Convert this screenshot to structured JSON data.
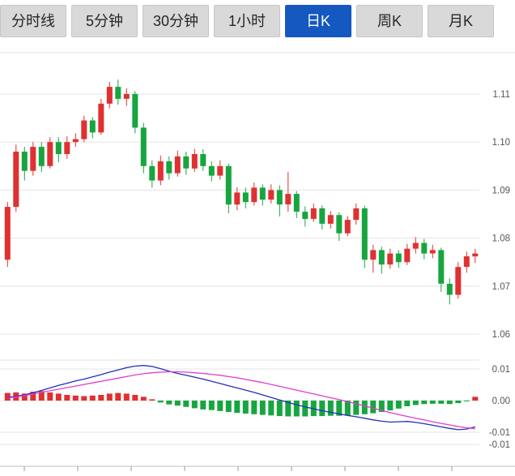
{
  "tabs": [
    {
      "label": "分时线",
      "active": false
    },
    {
      "label": "5分钟",
      "active": false
    },
    {
      "label": "30分钟",
      "active": false
    },
    {
      "label": "1小时",
      "active": false
    },
    {
      "label": "日K",
      "active": true
    },
    {
      "label": "周K",
      "active": false
    },
    {
      "label": "月K",
      "active": false
    }
  ],
  "colors": {
    "up": "#e03030",
    "down": "#16a53f",
    "dif_line": "#2230b8",
    "dea_line": "#e03cd0",
    "active_tab_bg": "#1458c0",
    "inactive_tab_bg": "#d9d9d9",
    "grid": "#e3e3e3",
    "axis_line": "#c0c0c0",
    "axis_text": "#555555"
  },
  "chart_data": {
    "type": "candlestick",
    "panels": [
      "price-candles",
      "macd-indicator"
    ],
    "legend_position": "none",
    "grid": true,
    "price_axis": {
      "side": "right",
      "tick_labels": [
        "1.11",
        "1.10",
        "1.09",
        "1.08",
        "1.07",
        "1.06"
      ],
      "tick_values": [
        1.11,
        1.1,
        1.09,
        1.08,
        1.07,
        1.06
      ],
      "range": [
        1.0545,
        1.1186
      ]
    },
    "macd_axis": {
      "side": "right",
      "tick_labels": [
        "0.01",
        "0.00",
        "-0.01",
        "-0.01"
      ],
      "tick_values": [
        0.01,
        0.0,
        -0.01,
        -0.0139
      ],
      "range": [
        -0.0139,
        0.012
      ]
    },
    "candles": {
      "open": [
        1.0755,
        1.0865,
        1.098,
        1.094,
        1.099,
        1.095,
        1.1,
        1.0975,
        1.1,
        1.1006,
        1.1045,
        1.102,
        1.108,
        1.1115,
        1.109,
        1.11,
        1.103,
        1.095,
        1.092,
        1.096,
        1.0935,
        1.097,
        1.0945,
        1.0975,
        1.095,
        1.093,
        1.095,
        1.087,
        1.0895,
        1.0875,
        1.0905,
        1.088,
        1.09,
        1.087,
        1.0892,
        1.0855,
        1.084,
        1.0862,
        1.083,
        1.0848,
        1.081,
        1.0838,
        1.0862,
        1.0755,
        1.0775,
        1.0745,
        1.0768,
        1.075,
        1.0778,
        1.079,
        1.0768,
        1.0775,
        1.0705,
        1.0682,
        1.074,
        1.0762
      ],
      "high": [
        1.0875,
        1.0995,
        1.099,
        1.1,
        1.1,
        1.101,
        1.101,
        1.1012,
        1.1018,
        1.1055,
        1.1052,
        1.109,
        1.1125,
        1.113,
        1.1112,
        1.1106,
        1.104,
        1.0962,
        1.0972,
        1.097,
        1.0982,
        1.098,
        1.0986,
        1.0985,
        1.096,
        1.0962,
        1.0955,
        1.0906,
        1.0905,
        1.0916,
        1.0912,
        1.0912,
        1.091,
        1.0938,
        1.0898,
        1.0866,
        1.0872,
        1.0868,
        1.0856,
        1.0853,
        1.0846,
        1.0872,
        1.0868,
        1.0786,
        1.0782,
        1.0778,
        1.0775,
        1.0788,
        1.0802,
        1.0798,
        1.0786,
        1.078,
        1.0716,
        1.075,
        1.0772,
        1.0778
      ],
      "low": [
        1.074,
        1.0855,
        1.092,
        1.093,
        1.0938,
        1.0945,
        1.0958,
        1.0965,
        1.099,
        1.1,
        1.1008,
        1.1015,
        1.107,
        1.1078,
        1.1075,
        1.1018,
        1.0935,
        1.0905,
        1.091,
        1.0922,
        1.0928,
        1.0932,
        1.0938,
        1.094,
        1.0918,
        1.0922,
        1.0852,
        1.0858,
        1.0862,
        1.0868,
        1.0868,
        1.0872,
        1.0845,
        1.0855,
        1.0842,
        1.0824,
        1.0834,
        1.0818,
        1.082,
        1.0794,
        1.0804,
        1.0828,
        1.0738,
        1.0728,
        1.0726,
        1.0736,
        1.0738,
        1.0744,
        1.0768,
        1.0756,
        1.0758,
        1.0688,
        1.0662,
        1.0674,
        1.0728,
        1.0748
      ],
      "close": [
        1.0865,
        1.098,
        1.094,
        1.099,
        1.095,
        1.1,
        1.0975,
        1.1,
        1.1006,
        1.1045,
        1.102,
        1.108,
        1.1115,
        1.109,
        1.11,
        1.103,
        1.095,
        1.092,
        1.096,
        1.0935,
        1.097,
        1.0945,
        1.0975,
        1.095,
        1.093,
        1.095,
        1.087,
        1.0895,
        1.0875,
        1.0905,
        1.088,
        1.09,
        1.087,
        1.0892,
        1.0855,
        1.084,
        1.0862,
        1.083,
        1.0848,
        1.081,
        1.0838,
        1.0862,
        1.0755,
        1.0775,
        1.0745,
        1.0768,
        1.075,
        1.0778,
        1.079,
        1.0768,
        1.0775,
        1.0705,
        1.0682,
        1.074,
        1.0762,
        1.0768
      ]
    },
    "macd": {
      "dif": [
        0.001,
        0.0014,
        0.0018,
        0.0025,
        0.0032,
        0.004,
        0.0048,
        0.0055,
        0.0062,
        0.0068,
        0.0075,
        0.0082,
        0.009,
        0.0097,
        0.0104,
        0.0109,
        0.0111,
        0.0108,
        0.0101,
        0.0093,
        0.0086,
        0.008,
        0.0074,
        0.0068,
        0.0061,
        0.0054,
        0.0047,
        0.004,
        0.0033,
        0.0026,
        0.0018,
        0.001,
        0.0002,
        -0.0006,
        -0.0013,
        -0.002,
        -0.0026,
        -0.0032,
        -0.0037,
        -0.0042,
        -0.0047,
        -0.0051,
        -0.0056,
        -0.0061,
        -0.0065,
        -0.0068,
        -0.0067,
        -0.0066,
        -0.0069,
        -0.0073,
        -0.0078,
        -0.0083,
        -0.0088,
        -0.0092,
        -0.009,
        -0.0083
      ],
      "dea": [
        0.0008,
        0.0012,
        0.0016,
        0.0021,
        0.0026,
        0.0031,
        0.0036,
        0.0041,
        0.0046,
        0.0051,
        0.0056,
        0.0061,
        0.0066,
        0.0071,
        0.0076,
        0.0081,
        0.0085,
        0.0088,
        0.009,
        0.0091,
        0.0091,
        0.009,
        0.0088,
        0.0086,
        0.0083,
        0.008,
        0.0076,
        0.0072,
        0.0067,
        0.0062,
        0.0057,
        0.0051,
        0.0045,
        0.0039,
        0.0033,
        0.0027,
        0.0021,
        0.0015,
        0.0009,
        0.0003,
        -0.0003,
        -0.001,
        -0.0017,
        -0.0024,
        -0.0031,
        -0.0038,
        -0.0044,
        -0.005,
        -0.0056,
        -0.0061,
        -0.0067,
        -0.0072,
        -0.0077,
        -0.0082,
        -0.0086,
        -0.0089
      ],
      "hist": [
        0.0024,
        0.0026,
        0.0022,
        0.0028,
        0.003,
        0.0026,
        0.0022,
        0.0018,
        0.0016,
        0.0014,
        0.0016,
        0.0018,
        0.0022,
        0.0024,
        0.0022,
        0.0018,
        0.0012,
        0.0004,
        -0.0006,
        -0.0012,
        -0.0016,
        -0.002,
        -0.0024,
        -0.0028,
        -0.003,
        -0.0033,
        -0.0036,
        -0.0039,
        -0.0041,
        -0.0043,
        -0.0045,
        -0.0047,
        -0.0049,
        -0.005,
        -0.005,
        -0.005,
        -0.0049,
        -0.0049,
        -0.0048,
        -0.0048,
        -0.0047,
        -0.0045,
        -0.0043,
        -0.004,
        -0.0036,
        -0.0031,
        -0.0025,
        -0.0018,
        -0.0014,
        -0.0011,
        -0.001,
        -0.001,
        -0.0011,
        -0.0008,
        -0.0002,
        0.0012
      ]
    }
  }
}
